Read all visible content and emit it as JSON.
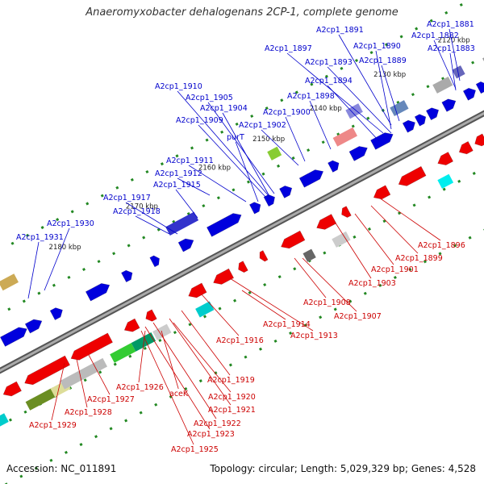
{
  "title": "Anaeromyxobacter dehalogenans 2CP-1, complete genome",
  "footer": {
    "accession": "Accession: NC_011891",
    "summary": "Topology: circular; Length: 5,029,329 bp; Genes: 4,528"
  },
  "colors": {
    "forward_label": "#0000cc",
    "reverse_label": "#cc0000",
    "forward_gene": "#0000dd",
    "reverse_gene": "#ee0000",
    "backbone": "#777777",
    "tick": "#228822"
  },
  "scale_labels": [
    "2120 kbp",
    "2130 kbp",
    "2140 kbp",
    "2150 kbp",
    "2160 kbp",
    "2170 kbp",
    "2180 kbp"
  ],
  "forward_labels": [
    "A2cp1_1881",
    "A2cp1_1891",
    "A2cp1_1882",
    "A2cp1_1890",
    "A2cp1_1897",
    "A2cp1_1883",
    "A2cp1_1893",
    "A2cp1_1889",
    "A2cp1_1894",
    "A2cp1_1898",
    "A2cp1_1910",
    "A2cp1_1905",
    "A2cp1_1904",
    "A2cp1_1900",
    "A2cp1_1909",
    "A2cp1_1902",
    "purT",
    "A2cp1_1911",
    "A2cp1_1912",
    "A2cp1_1915",
    "A2cp1_1917",
    "A2cp1_1918",
    "A2cp1_1930",
    "A2cp1_1931"
  ],
  "reverse_labels": [
    "A2cp1_1896",
    "A2cp1_1899",
    "A2cp1_1901",
    "A2cp1_1903",
    "A2cp1_1908",
    "A2cp1_1907",
    "A2cp1_1914",
    "A2cp1_1913",
    "A2cp1_1916",
    "A2cp1_1919",
    "A2cp1_1926",
    "aceK",
    "A2cp1_1920",
    "A2cp1_1927",
    "A2cp1_1921",
    "A2cp1_1928",
    "A2cp1_1922",
    "A2cp1_1929",
    "A2cp1_1923",
    "A2cp1_1925"
  ]
}
